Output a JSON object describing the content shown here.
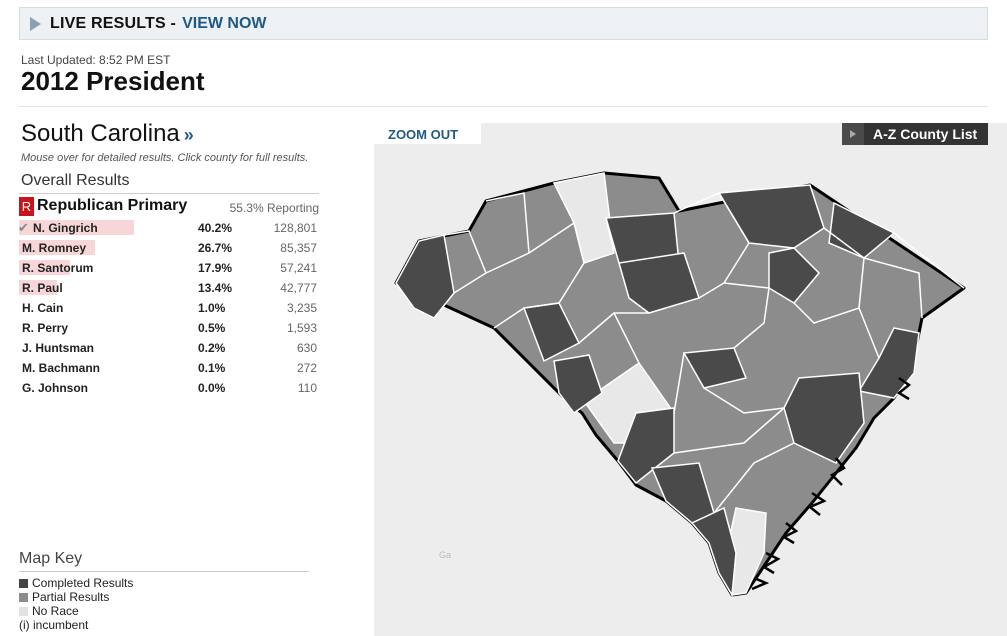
{
  "banner": {
    "live_text": "LIVE RESULTS -",
    "view_link": "VIEW NOW"
  },
  "header": {
    "updated": "Last Updated: 8:52 PM EST",
    "title": "2012 President"
  },
  "state": {
    "name": "South Carolina",
    "arrows": "»",
    "instructions": "Mouse over for detailed results. Click county for full results.",
    "overall": "Overall Results"
  },
  "primary": {
    "badge": "R",
    "name": "Republican Primary",
    "reporting": "55.3% Reporting"
  },
  "candidates": [
    {
      "name": "N. Gingrich",
      "pct": "40.2%",
      "votes": "128,801",
      "pct_value": 40.2,
      "winner": true
    },
    {
      "name": "M. Romney",
      "pct": "26.7%",
      "votes": "85,357",
      "pct_value": 26.7,
      "winner": false
    },
    {
      "name": "R. Santorum",
      "pct": "17.9%",
      "votes": "57,241",
      "pct_value": 17.9,
      "winner": false
    },
    {
      "name": "R. Paul",
      "pct": "13.4%",
      "votes": "42,777",
      "pct_value": 13.4,
      "winner": false
    },
    {
      "name": "H. Cain",
      "pct": "1.0%",
      "votes": "3,235",
      "pct_value": 1.0,
      "winner": false
    },
    {
      "name": "R. Perry",
      "pct": "0.5%",
      "votes": "1,593",
      "pct_value": 0.5,
      "winner": false
    },
    {
      "name": "J. Huntsman",
      "pct": "0.2%",
      "votes": "630",
      "pct_value": 0.2,
      "winner": false
    },
    {
      "name": "M. Bachmann",
      "pct": "0.1%",
      "votes": "272",
      "pct_value": 0.1,
      "winner": false
    },
    {
      "name": "G. Johnson",
      "pct": "0.0%",
      "votes": "110",
      "pct_value": 0.0,
      "winner": false
    }
  ],
  "check_icon": "✔",
  "map": {
    "zoom_out": "ZOOM OUT",
    "az_list": "A-Z County List",
    "neighbor_label": "Ga"
  },
  "map_key": {
    "title": "Map Key",
    "items": [
      {
        "label": "Completed Results",
        "color": "#444444"
      },
      {
        "label": "Partial Results",
        "color": "#8c8c8c"
      },
      {
        "label": "No Race",
        "color": "#e2e2e2"
      },
      {
        "label": "(i) incumbent"
      }
    ]
  },
  "colors": {
    "completed": "#444444",
    "partial": "#8c8c8c",
    "no_race": "#e2e2e2",
    "bar_fill": "#f7d6d8",
    "badge": "#c8151b",
    "link": "#1f5a86"
  }
}
